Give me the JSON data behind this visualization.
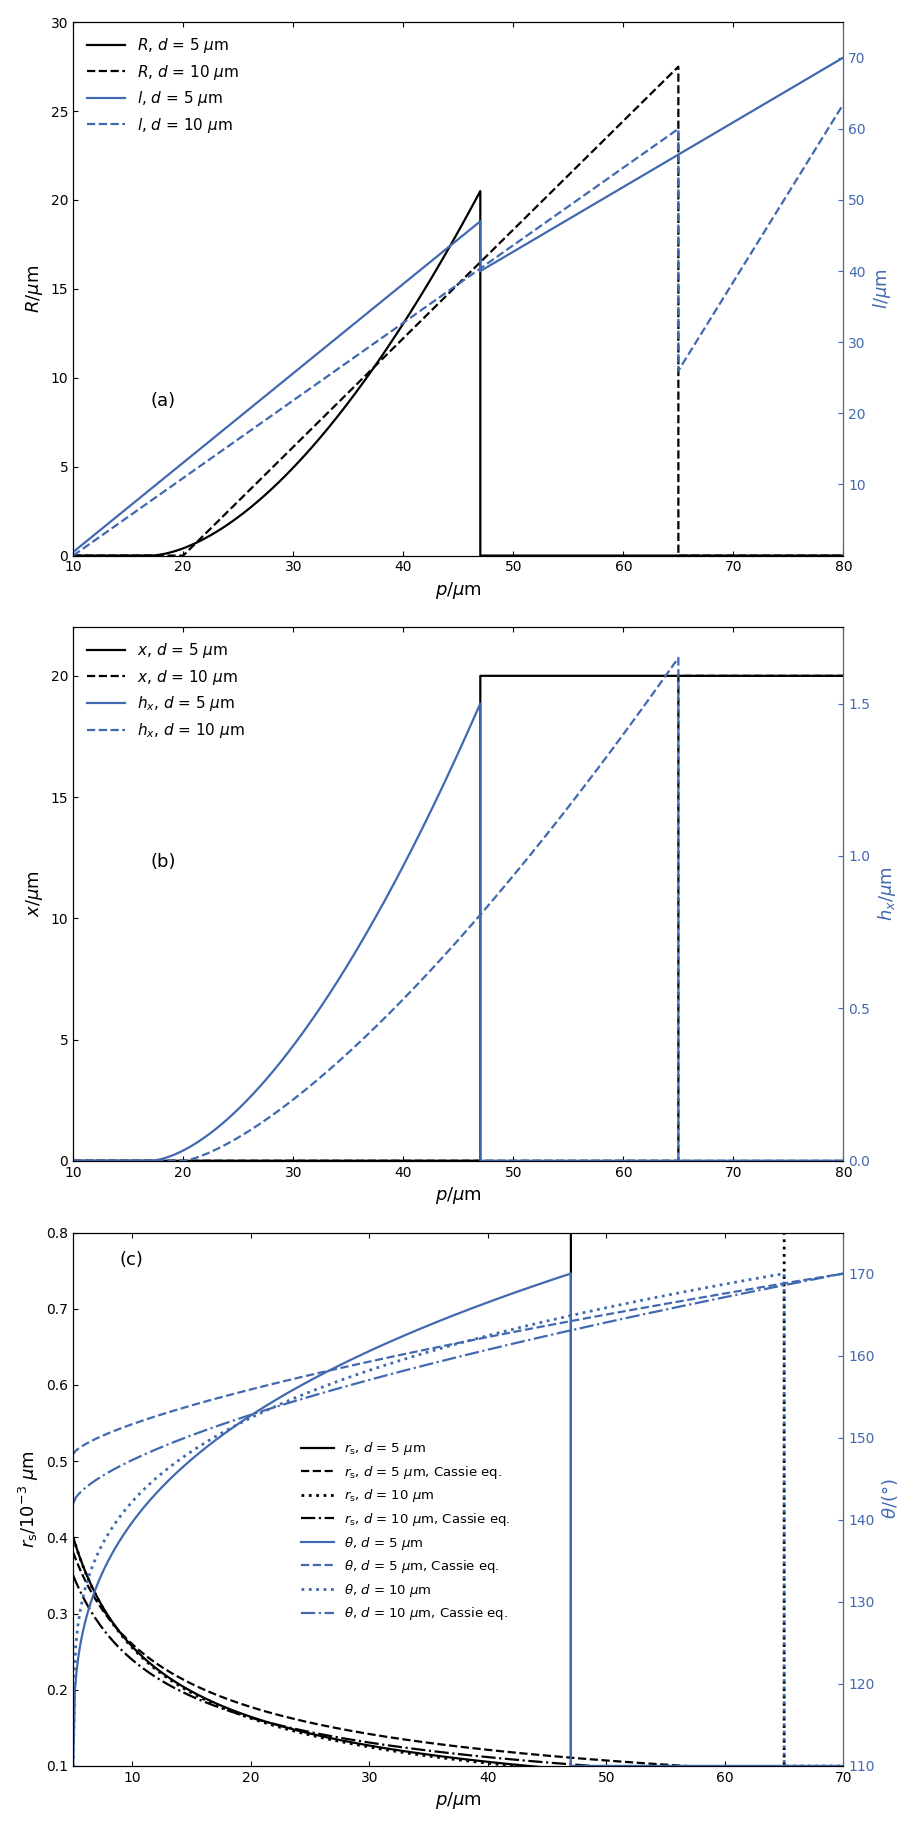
{
  "blue": "#4169b0",
  "panel_a": {
    "xlim": [
      10,
      80
    ],
    "ylim_left": [
      0,
      30
    ],
    "ylim_right": [
      0,
      75
    ],
    "xticks": [
      10,
      20,
      30,
      40,
      50,
      60,
      70,
      80
    ],
    "yticks_left": [
      0,
      5,
      10,
      15,
      20,
      25,
      30
    ],
    "yticks_right": [
      10,
      20,
      30,
      40,
      50,
      60,
      70
    ],
    "trans5": 47.0,
    "trans10": 65.0
  },
  "panel_b": {
    "xlim": [
      10,
      80
    ],
    "ylim_left": [
      0,
      22
    ],
    "ylim_right": [
      0,
      1.75
    ],
    "xticks": [
      10,
      20,
      30,
      40,
      50,
      60,
      70,
      80
    ],
    "yticks_left": [
      0,
      5,
      10,
      15,
      20
    ],
    "yticks_right": [
      0,
      0.5,
      1.0,
      1.5
    ],
    "trans5": 47.0,
    "trans10": 65.0
  },
  "panel_c": {
    "xlim": [
      5,
      70
    ],
    "ylim_left": [
      0.1,
      0.8
    ],
    "ylim_right": [
      110,
      175
    ],
    "xticks": [
      10,
      20,
      30,
      40,
      50,
      60,
      70
    ],
    "yticks_left": [
      0.1,
      0.2,
      0.3,
      0.4,
      0.5,
      0.6,
      0.7,
      0.8
    ],
    "yticks_right": [
      110,
      120,
      130,
      140,
      150,
      160,
      170
    ],
    "trans5": 47.0,
    "trans10": 65.0
  }
}
